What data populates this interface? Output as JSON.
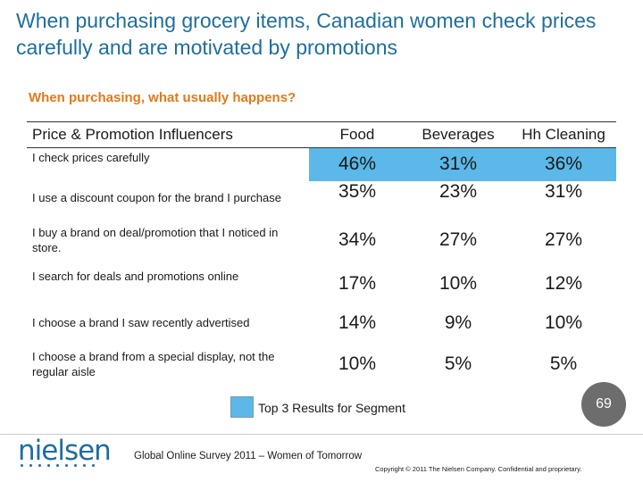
{
  "slide": {
    "title": "When purchasing grocery items, Canadian women check prices carefully and are motivated by promotions",
    "subtitle": "When purchasing, what usually happens?"
  },
  "table": {
    "columns": [
      "Price & Promotion Influencers",
      "Food",
      "Beverages",
      "Hh Cleaning"
    ],
    "rows": [
      {
        "label": "I check prices carefully",
        "values": [
          "46%",
          "31%",
          "36%"
        ],
        "highlight": true
      },
      {
        "label": "I use a discount coupon for the brand I purchase",
        "values": [
          "35%",
          "23%",
          "31%"
        ],
        "highlight": false
      },
      {
        "label": "I buy a brand on deal/promotion that I noticed in store.",
        "values": [
          "34%",
          "27%",
          "27%"
        ],
        "highlight": false
      },
      {
        "label": "I search for deals and promotions online",
        "values": [
          "17%",
          "10%",
          "12%"
        ],
        "highlight": false
      },
      {
        "label": "I choose a brand I saw recently advertised",
        "values": [
          "14%",
          "9%",
          "10%"
        ],
        "highlight": false
      },
      {
        "label": "I choose a brand from a special display, not the regular aisle",
        "values": [
          "10%",
          "5%",
          "5%"
        ],
        "highlight": false
      }
    ]
  },
  "legend": {
    "label": "Top 3 Results for Segment",
    "color": "#5bb8e8"
  },
  "page_number": "69",
  "footer": {
    "logo": "nielsen",
    "source": "Global Online Survey 2011 – Women of Tomorrow",
    "copyright": "Copyright © 2011 The Nielsen Company. Confidential and proprietary."
  },
  "colors": {
    "title": "#1f6e9c",
    "subtitle": "#e07a1a",
    "highlight": "#5bb8e8"
  }
}
